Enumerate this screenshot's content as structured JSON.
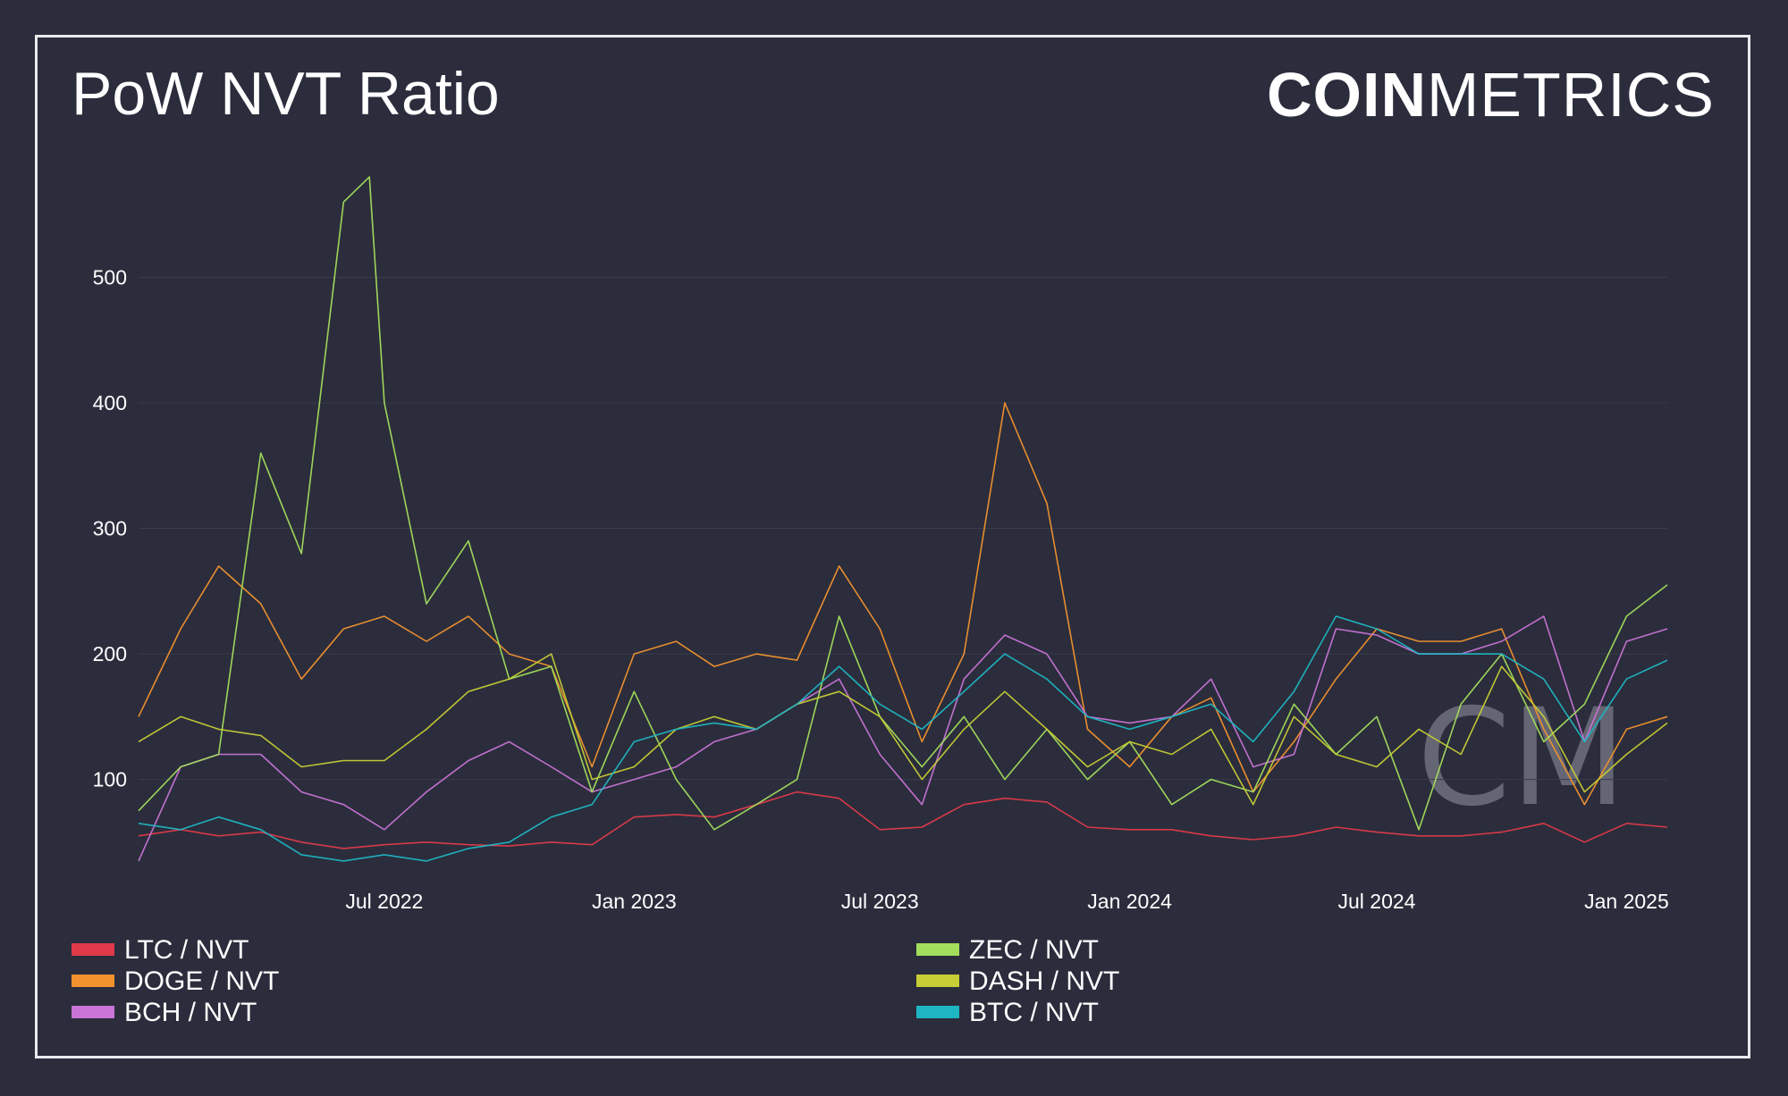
{
  "title": "PoW NVT Ratio",
  "logo": {
    "bold": "COIN",
    "light": "METRICS"
  },
  "watermark": "CM",
  "colors": {
    "background": "#2b2d3c",
    "frame": "#e9eaee",
    "grid": "#3a3c4c",
    "text": "#ffffff"
  },
  "chart_data": {
    "type": "line",
    "title": "PoW NVT Ratio",
    "xlabel": "",
    "ylabel": "",
    "xlim": [
      "2022-01-01",
      "2025-01-31"
    ],
    "ylim": [
      20,
      600
    ],
    "yticks": [
      100,
      200,
      300,
      400,
      500
    ],
    "xticks": [
      {
        "date": "2022-07-01",
        "label": "Jul 2022"
      },
      {
        "date": "2023-01-01",
        "label": "Jan 2023"
      },
      {
        "date": "2023-07-01",
        "label": "Jul 2023"
      },
      {
        "date": "2024-01-01",
        "label": "Jan 2024"
      },
      {
        "date": "2024-07-01",
        "label": "Jul 2024"
      },
      {
        "date": "2025-01-01",
        "label": "Jan 2025"
      }
    ],
    "grid": true,
    "legend_position": "bottom",
    "series": [
      {
        "name": "LTC / NVT",
        "color": "#e03a4a",
        "points": [
          [
            "2022-01-01",
            55
          ],
          [
            "2022-02-01",
            60
          ],
          [
            "2022-03-01",
            55
          ],
          [
            "2022-04-01",
            58
          ],
          [
            "2022-05-01",
            50
          ],
          [
            "2022-06-01",
            45
          ],
          [
            "2022-07-01",
            48
          ],
          [
            "2022-08-01",
            50
          ],
          [
            "2022-09-01",
            48
          ],
          [
            "2022-10-01",
            47
          ],
          [
            "2022-11-01",
            50
          ],
          [
            "2022-12-01",
            48
          ],
          [
            "2023-01-01",
            70
          ],
          [
            "2023-02-01",
            72
          ],
          [
            "2023-03-01",
            70
          ],
          [
            "2023-04-01",
            80
          ],
          [
            "2023-05-01",
            90
          ],
          [
            "2023-06-01",
            85
          ],
          [
            "2023-07-01",
            60
          ],
          [
            "2023-08-01",
            62
          ],
          [
            "2023-09-01",
            80
          ],
          [
            "2023-10-01",
            85
          ],
          [
            "2023-11-01",
            82
          ],
          [
            "2023-12-01",
            62
          ],
          [
            "2024-01-01",
            60
          ],
          [
            "2024-02-01",
            60
          ],
          [
            "2024-03-01",
            55
          ],
          [
            "2024-04-01",
            52
          ],
          [
            "2024-05-01",
            55
          ],
          [
            "2024-06-01",
            62
          ],
          [
            "2024-07-01",
            58
          ],
          [
            "2024-08-01",
            55
          ],
          [
            "2024-09-01",
            55
          ],
          [
            "2024-10-01",
            58
          ],
          [
            "2024-11-01",
            65
          ],
          [
            "2024-12-01",
            50
          ],
          [
            "2025-01-01",
            65
          ],
          [
            "2025-01-31",
            62
          ]
        ]
      },
      {
        "name": "DOGE / NVT",
        "color": "#f2922e",
        "points": [
          [
            "2022-01-01",
            150
          ],
          [
            "2022-02-01",
            220
          ],
          [
            "2022-03-01",
            270
          ],
          [
            "2022-04-01",
            240
          ],
          [
            "2022-05-01",
            180
          ],
          [
            "2022-06-01",
            220
          ],
          [
            "2022-07-01",
            230
          ],
          [
            "2022-08-01",
            210
          ],
          [
            "2022-09-01",
            230
          ],
          [
            "2022-10-01",
            200
          ],
          [
            "2022-11-01",
            190
          ],
          [
            "2022-12-01",
            110
          ],
          [
            "2023-01-01",
            200
          ],
          [
            "2023-02-01",
            210
          ],
          [
            "2023-03-01",
            190
          ],
          [
            "2023-04-01",
            200
          ],
          [
            "2023-05-01",
            195
          ],
          [
            "2023-06-01",
            270
          ],
          [
            "2023-07-01",
            220
          ],
          [
            "2023-08-01",
            130
          ],
          [
            "2023-09-01",
            200
          ],
          [
            "2023-10-01",
            400
          ],
          [
            "2023-11-01",
            320
          ],
          [
            "2023-12-01",
            140
          ],
          [
            "2024-01-01",
            110
          ],
          [
            "2024-02-01",
            150
          ],
          [
            "2024-03-01",
            165
          ],
          [
            "2024-04-01",
            90
          ],
          [
            "2024-05-01",
            130
          ],
          [
            "2024-06-01",
            180
          ],
          [
            "2024-07-01",
            220
          ],
          [
            "2024-08-01",
            210
          ],
          [
            "2024-09-01",
            210
          ],
          [
            "2024-10-01",
            220
          ],
          [
            "2024-11-01",
            140
          ],
          [
            "2024-12-01",
            80
          ],
          [
            "2025-01-01",
            140
          ],
          [
            "2025-01-31",
            150
          ]
        ]
      },
      {
        "name": "BCH / NVT",
        "color": "#c974d6",
        "points": [
          [
            "2022-01-01",
            35
          ],
          [
            "2022-02-01",
            110
          ],
          [
            "2022-03-01",
            120
          ],
          [
            "2022-04-01",
            120
          ],
          [
            "2022-05-01",
            90
          ],
          [
            "2022-06-01",
            80
          ],
          [
            "2022-07-01",
            60
          ],
          [
            "2022-08-01",
            90
          ],
          [
            "2022-09-01",
            115
          ],
          [
            "2022-10-01",
            130
          ],
          [
            "2022-11-01",
            110
          ],
          [
            "2022-12-01",
            90
          ],
          [
            "2023-01-01",
            100
          ],
          [
            "2023-02-01",
            110
          ],
          [
            "2023-03-01",
            130
          ],
          [
            "2023-04-01",
            140
          ],
          [
            "2023-05-01",
            160
          ],
          [
            "2023-06-01",
            180
          ],
          [
            "2023-07-01",
            120
          ],
          [
            "2023-08-01",
            80
          ],
          [
            "2023-09-01",
            180
          ],
          [
            "2023-10-01",
            215
          ],
          [
            "2023-11-01",
            200
          ],
          [
            "2023-12-01",
            150
          ],
          [
            "2024-01-01",
            145
          ],
          [
            "2024-02-01",
            150
          ],
          [
            "2024-03-01",
            180
          ],
          [
            "2024-04-01",
            110
          ],
          [
            "2024-05-01",
            120
          ],
          [
            "2024-06-01",
            220
          ],
          [
            "2024-07-01",
            215
          ],
          [
            "2024-08-01",
            200
          ],
          [
            "2024-09-01",
            200
          ],
          [
            "2024-10-01",
            210
          ],
          [
            "2024-11-01",
            230
          ],
          [
            "2024-12-01",
            130
          ],
          [
            "2025-01-01",
            210
          ],
          [
            "2025-01-31",
            220
          ]
        ]
      },
      {
        "name": "ZEC / NVT",
        "color": "#a3de5c",
        "points": [
          [
            "2022-01-01",
            75
          ],
          [
            "2022-02-01",
            110
          ],
          [
            "2022-03-01",
            120
          ],
          [
            "2022-04-01",
            360
          ],
          [
            "2022-05-01",
            280
          ],
          [
            "2022-06-01",
            560
          ],
          [
            "2022-06-20",
            580
          ],
          [
            "2022-07-01",
            400
          ],
          [
            "2022-08-01",
            240
          ],
          [
            "2022-09-01",
            290
          ],
          [
            "2022-10-01",
            180
          ],
          [
            "2022-11-01",
            190
          ],
          [
            "2022-12-01",
            90
          ],
          [
            "2023-01-01",
            170
          ],
          [
            "2023-02-01",
            100
          ],
          [
            "2023-03-01",
            60
          ],
          [
            "2023-04-01",
            80
          ],
          [
            "2023-05-01",
            100
          ],
          [
            "2023-06-01",
            230
          ],
          [
            "2023-07-01",
            150
          ],
          [
            "2023-08-01",
            110
          ],
          [
            "2023-09-01",
            150
          ],
          [
            "2023-10-01",
            100
          ],
          [
            "2023-11-01",
            140
          ],
          [
            "2023-12-01",
            100
          ],
          [
            "2024-01-01",
            130
          ],
          [
            "2024-02-01",
            80
          ],
          [
            "2024-03-01",
            100
          ],
          [
            "2024-04-01",
            90
          ],
          [
            "2024-05-01",
            160
          ],
          [
            "2024-06-01",
            120
          ],
          [
            "2024-07-01",
            150
          ],
          [
            "2024-08-01",
            60
          ],
          [
            "2024-09-01",
            160
          ],
          [
            "2024-10-01",
            200
          ],
          [
            "2024-11-01",
            130
          ],
          [
            "2024-12-01",
            160
          ],
          [
            "2025-01-01",
            230
          ],
          [
            "2025-01-31",
            255
          ]
        ]
      },
      {
        "name": "DASH / NVT",
        "color": "#c6cd35",
        "points": [
          [
            "2022-01-01",
            130
          ],
          [
            "2022-02-01",
            150
          ],
          [
            "2022-03-01",
            140
          ],
          [
            "2022-04-01",
            135
          ],
          [
            "2022-05-01",
            110
          ],
          [
            "2022-06-01",
            115
          ],
          [
            "2022-07-01",
            115
          ],
          [
            "2022-08-01",
            140
          ],
          [
            "2022-09-01",
            170
          ],
          [
            "2022-10-01",
            180
          ],
          [
            "2022-11-01",
            200
          ],
          [
            "2022-12-01",
            100
          ],
          [
            "2023-01-01",
            110
          ],
          [
            "2023-02-01",
            140
          ],
          [
            "2023-03-01",
            150
          ],
          [
            "2023-04-01",
            140
          ],
          [
            "2023-05-01",
            160
          ],
          [
            "2023-06-01",
            170
          ],
          [
            "2023-07-01",
            150
          ],
          [
            "2023-08-01",
            100
          ],
          [
            "2023-09-01",
            140
          ],
          [
            "2023-10-01",
            170
          ],
          [
            "2023-11-01",
            140
          ],
          [
            "2023-12-01",
            110
          ],
          [
            "2024-01-01",
            130
          ],
          [
            "2024-02-01",
            120
          ],
          [
            "2024-03-01",
            140
          ],
          [
            "2024-04-01",
            80
          ],
          [
            "2024-05-01",
            150
          ],
          [
            "2024-06-01",
            120
          ],
          [
            "2024-07-01",
            110
          ],
          [
            "2024-08-01",
            140
          ],
          [
            "2024-09-01",
            120
          ],
          [
            "2024-10-01",
            190
          ],
          [
            "2024-11-01",
            150
          ],
          [
            "2024-12-01",
            90
          ],
          [
            "2025-01-01",
            120
          ],
          [
            "2025-01-31",
            145
          ]
        ]
      },
      {
        "name": "BTC / NVT",
        "color": "#1fb6c3",
        "points": [
          [
            "2022-01-01",
            65
          ],
          [
            "2022-02-01",
            60
          ],
          [
            "2022-03-01",
            70
          ],
          [
            "2022-04-01",
            60
          ],
          [
            "2022-05-01",
            40
          ],
          [
            "2022-06-01",
            35
          ],
          [
            "2022-07-01",
            40
          ],
          [
            "2022-08-01",
            35
          ],
          [
            "2022-09-01",
            45
          ],
          [
            "2022-10-01",
            50
          ],
          [
            "2022-11-01",
            70
          ],
          [
            "2022-12-01",
            80
          ],
          [
            "2023-01-01",
            130
          ],
          [
            "2023-02-01",
            140
          ],
          [
            "2023-03-01",
            145
          ],
          [
            "2023-04-01",
            140
          ],
          [
            "2023-05-01",
            160
          ],
          [
            "2023-06-01",
            190
          ],
          [
            "2023-07-01",
            160
          ],
          [
            "2023-08-01",
            140
          ],
          [
            "2023-09-01",
            170
          ],
          [
            "2023-10-01",
            200
          ],
          [
            "2023-11-01",
            180
          ],
          [
            "2023-12-01",
            150
          ],
          [
            "2024-01-01",
            140
          ],
          [
            "2024-02-01",
            150
          ],
          [
            "2024-03-01",
            160
          ],
          [
            "2024-04-01",
            130
          ],
          [
            "2024-05-01",
            170
          ],
          [
            "2024-06-01",
            230
          ],
          [
            "2024-07-01",
            220
          ],
          [
            "2024-08-01",
            200
          ],
          [
            "2024-09-01",
            200
          ],
          [
            "2024-10-01",
            200
          ],
          [
            "2024-11-01",
            180
          ],
          [
            "2024-12-01",
            130
          ],
          [
            "2025-01-01",
            180
          ],
          [
            "2025-01-31",
            195
          ]
        ]
      }
    ]
  }
}
